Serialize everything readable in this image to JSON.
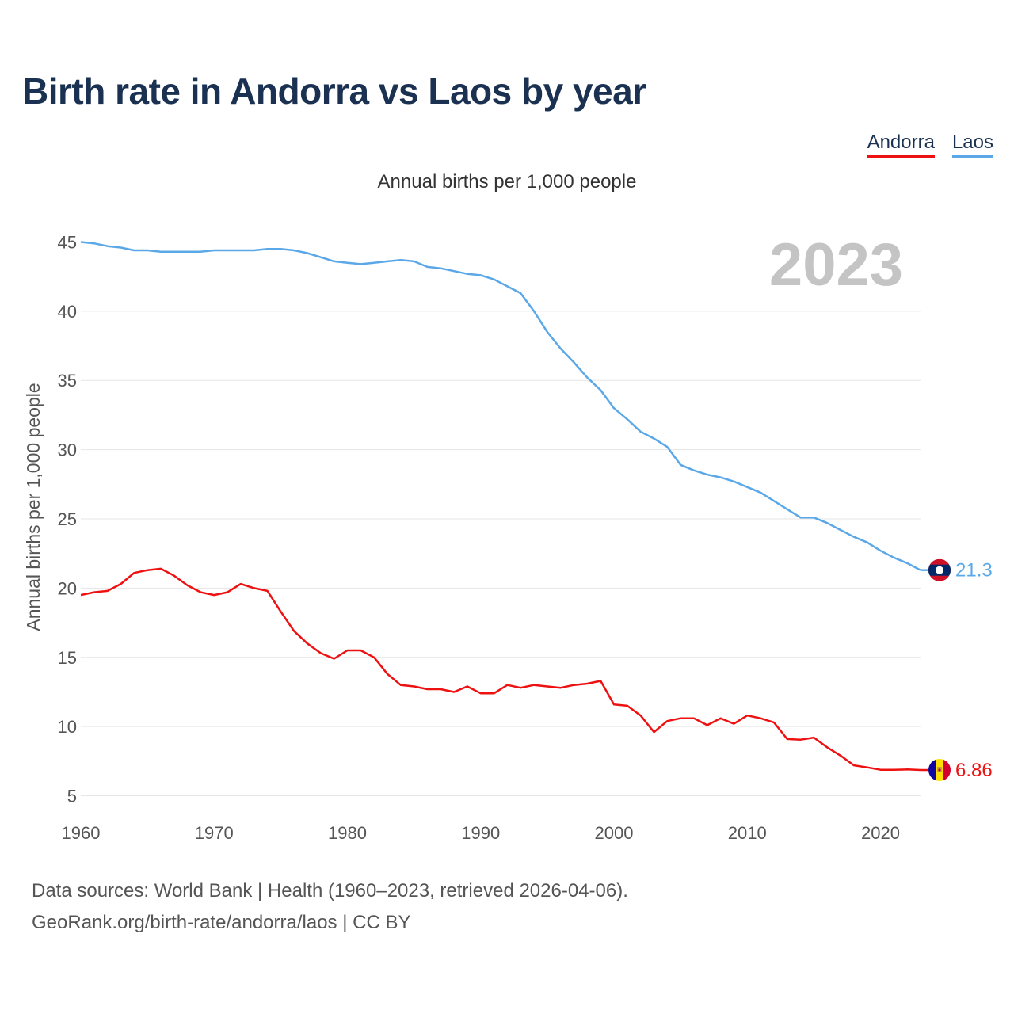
{
  "title": "Birth rate in Andorra vs Laos by year",
  "subtitle": "Annual births per 1,000 people",
  "legend": [
    {
      "name": "Andorra",
      "color": "#ee1111"
    },
    {
      "name": "Laos",
      "color": "#5ba8e8"
    }
  ],
  "footer": {
    "line1": "Data sources: World Bank | Health (1960–2023, retrieved 2026-04-06).",
    "line2": "GeoRank.org/birth-rate/andorra/laos | CC BY"
  },
  "chart_data": {
    "type": "line",
    "title": "Birth rate in Andorra vs Laos by year",
    "ylabel": "Annual births per 1,000 people",
    "xlabel": "",
    "year_label": "2023",
    "x_ticks": [
      1960,
      1970,
      1980,
      1990,
      2000,
      2010,
      2020
    ],
    "y_ticks": [
      5,
      10,
      15,
      20,
      25,
      30,
      35,
      40,
      45
    ],
    "xlim": [
      1960,
      2023
    ],
    "ylim": [
      4,
      46
    ],
    "grid": true,
    "x": [
      1960,
      1961,
      1962,
      1963,
      1964,
      1965,
      1966,
      1967,
      1968,
      1969,
      1970,
      1971,
      1972,
      1973,
      1974,
      1975,
      1976,
      1977,
      1978,
      1979,
      1980,
      1981,
      1982,
      1983,
      1984,
      1985,
      1986,
      1987,
      1988,
      1989,
      1990,
      1991,
      1992,
      1993,
      1994,
      1995,
      1996,
      1997,
      1998,
      1999,
      2000,
      2001,
      2002,
      2003,
      2004,
      2005,
      2006,
      2007,
      2008,
      2009,
      2010,
      2011,
      2012,
      2013,
      2014,
      2015,
      2016,
      2017,
      2018,
      2019,
      2020,
      2021,
      2022,
      2023
    ],
    "series": [
      {
        "name": "Laos",
        "color": "#5ba8e8",
        "end_label": "21.3",
        "values": [
          45.0,
          44.9,
          44.7,
          44.6,
          44.4,
          44.4,
          44.3,
          44.3,
          44.3,
          44.3,
          44.4,
          44.4,
          44.4,
          44.4,
          44.5,
          44.5,
          44.4,
          44.2,
          43.9,
          43.6,
          43.5,
          43.4,
          43.5,
          43.6,
          43.7,
          43.6,
          43.2,
          43.1,
          42.9,
          42.7,
          42.6,
          42.3,
          41.8,
          41.3,
          40.0,
          38.5,
          37.3,
          36.3,
          35.2,
          34.3,
          33.0,
          32.2,
          31.3,
          30.8,
          30.2,
          28.9,
          28.5,
          28.2,
          28.0,
          27.7,
          27.3,
          26.9,
          26.3,
          25.7,
          25.1,
          25.1,
          24.7,
          24.2,
          23.7,
          23.3,
          22.7,
          22.2,
          21.8,
          21.3
        ]
      },
      {
        "name": "Andorra",
        "color": "#ee1111",
        "end_label": "6.86",
        "values": [
          19.5,
          19.7,
          19.8,
          20.3,
          21.1,
          21.3,
          21.4,
          20.9,
          20.2,
          19.7,
          19.5,
          19.7,
          20.3,
          20.0,
          19.8,
          18.3,
          16.9,
          16.0,
          15.3,
          14.9,
          15.5,
          15.5,
          15.0,
          13.8,
          13.0,
          12.9,
          12.7,
          12.7,
          12.5,
          12.9,
          12.4,
          12.4,
          13.0,
          12.8,
          13.0,
          12.9,
          12.8,
          13.0,
          13.1,
          13.3,
          11.6,
          11.5,
          10.8,
          9.6,
          10.4,
          10.6,
          10.6,
          10.1,
          10.6,
          10.2,
          10.8,
          10.6,
          10.3,
          9.1,
          9.05,
          9.2,
          8.5,
          7.9,
          7.2,
          7.05,
          6.88,
          6.88,
          6.9,
          6.86
        ]
      }
    ]
  }
}
